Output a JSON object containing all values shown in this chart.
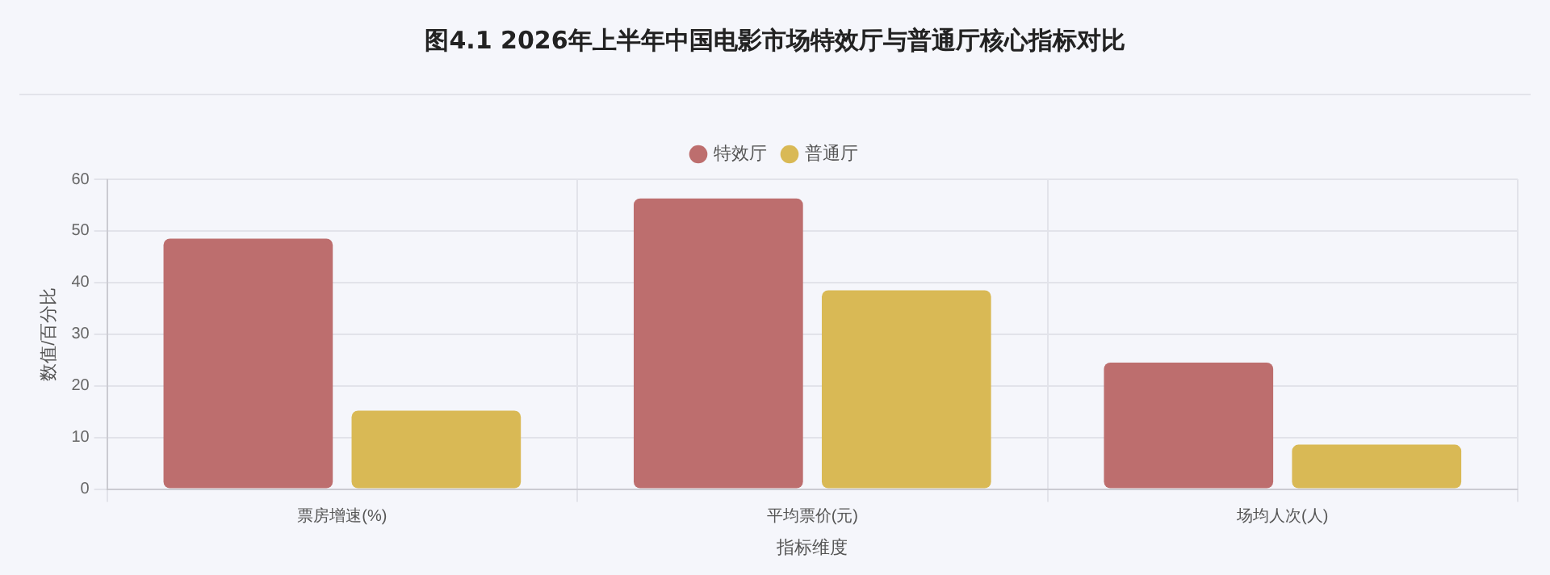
{
  "chart_data": {
    "type": "bar",
    "title": "图4.1 2026年上半年中国电影市场特效厅与普通厅核心指标对比",
    "xlabel": "指标维度",
    "ylabel": "数值/百分比",
    "categories": [
      "票房增速(%)",
      "平均票价(元)",
      "场均人次(人)"
    ],
    "series": [
      {
        "name": "特效厅",
        "color": "#bd6e6e",
        "values": [
          48.5,
          56.3,
          24.5
        ]
      },
      {
        "name": "普通厅",
        "color": "#d9b955",
        "values": [
          15.2,
          38.5,
          8.6
        ]
      }
    ],
    "ylim": [
      0,
      60
    ],
    "yticks": [
      0,
      10,
      20,
      30,
      40,
      50,
      60
    ],
    "grid": true,
    "legend": "top"
  }
}
